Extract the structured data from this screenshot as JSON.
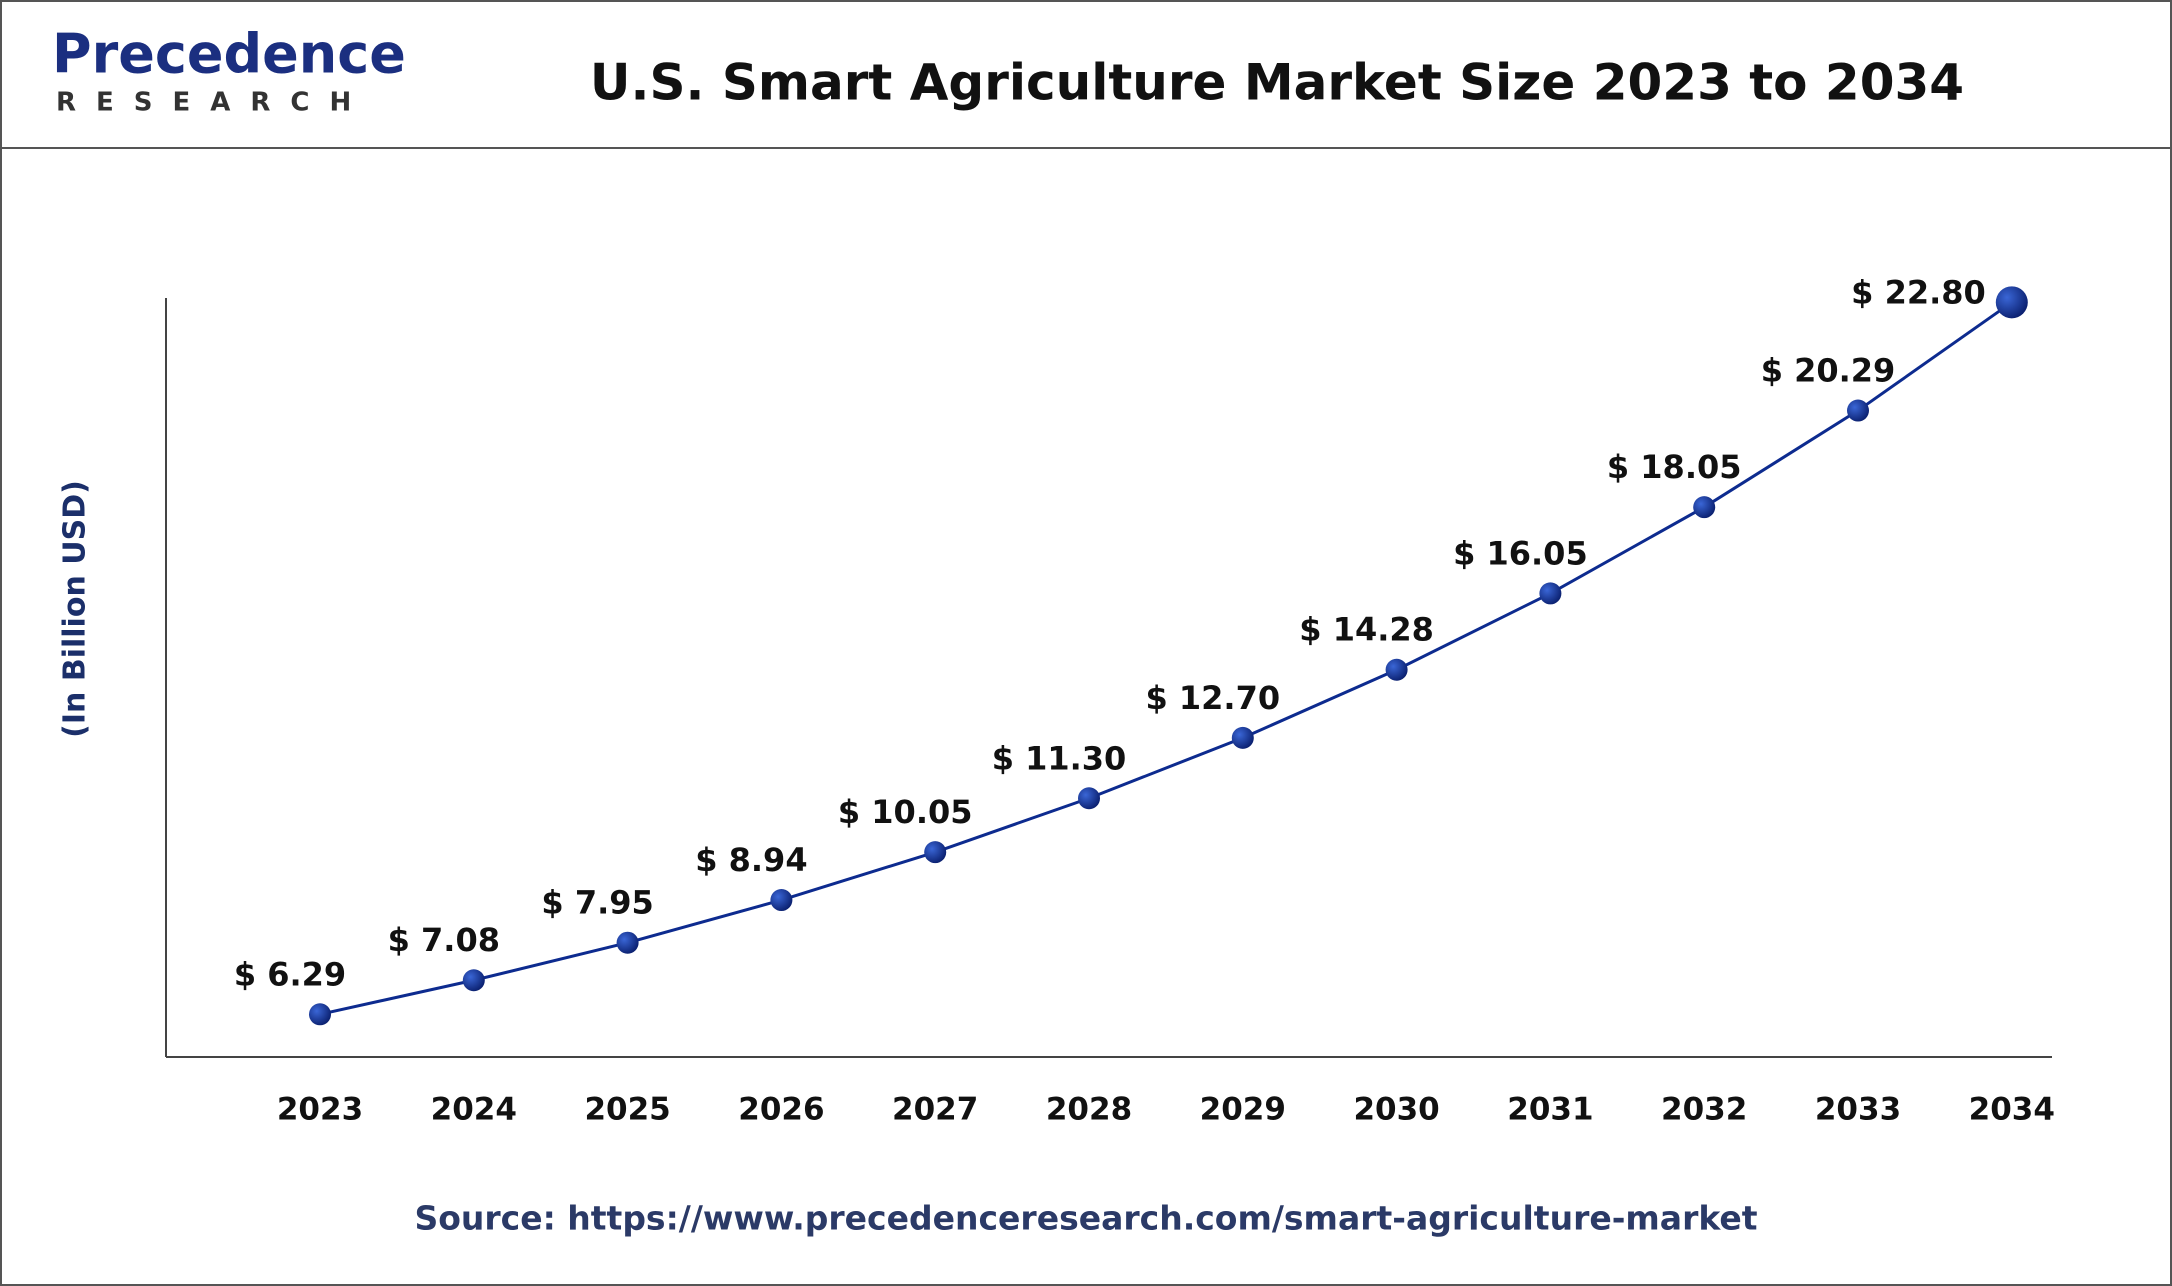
{
  "logo": {
    "name": "Precedence",
    "tagline": "RESEARCH"
  },
  "chart_data": {
    "type": "line",
    "title": "U.S. Smart Agriculture Market Size 2023 to 2034",
    "ylabel": "(In Billion USD)",
    "source": "Source: https://www.precedenceresearch.com/smart-agriculture-market",
    "categories": [
      "2023",
      "2024",
      "2025",
      "2026",
      "2027",
      "2028",
      "2029",
      "2030",
      "2031",
      "2032",
      "2033",
      "2034"
    ],
    "values": [
      6.29,
      7.08,
      7.95,
      8.94,
      10.05,
      11.3,
      12.7,
      14.28,
      16.05,
      18.05,
      20.29,
      22.8
    ],
    "value_labels": [
      "$ 6.29",
      "$ 7.08",
      "$ 7.95",
      "$ 8.94",
      "$ 10.05",
      "$ 11.30",
      "$ 12.70",
      "$ 14.28",
      "$ 16.05",
      "$ 18.05",
      "$ 20.29",
      "$ 22.80"
    ],
    "color": "#0d2b8f",
    "ylim": [
      5.3,
      22.9
    ],
    "grid": false
  }
}
